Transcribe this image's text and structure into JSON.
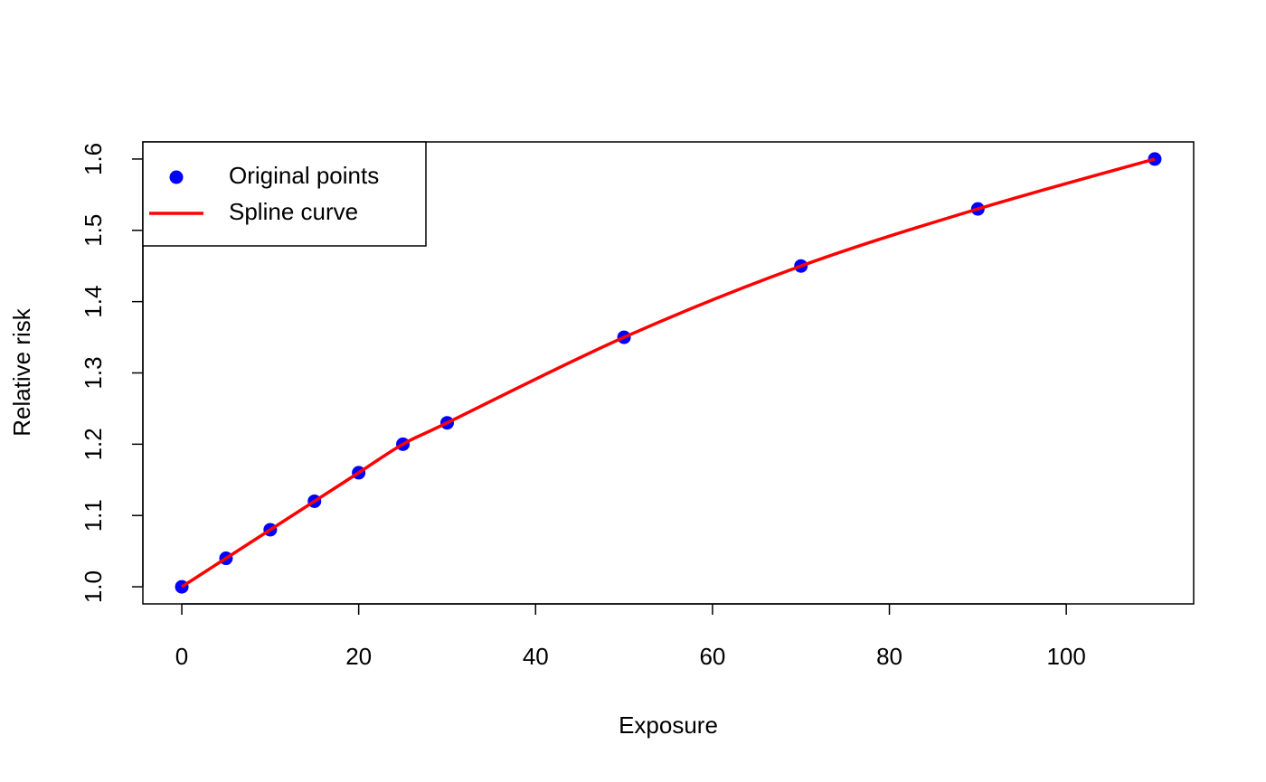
{
  "chart_data": {
    "type": "scatter",
    "x_label": "Exposure",
    "y_label": "Relative risk",
    "x": [
      0,
      5,
      10,
      15,
      20,
      25,
      30,
      50,
      70,
      90,
      110
    ],
    "series": [
      {
        "name": "Original points",
        "type": "scatter",
        "color": "#0000ff",
        "values": [
          1.0,
          1.04,
          1.08,
          1.12,
          1.16,
          1.2,
          1.23,
          1.35,
          1.45,
          1.53,
          1.6
        ]
      },
      {
        "name": "Spline curve",
        "type": "line",
        "color": "#ff0000",
        "values": [
          1.0,
          1.04,
          1.08,
          1.12,
          1.16,
          1.2,
          1.23,
          1.35,
          1.45,
          1.53,
          1.6
        ]
      }
    ],
    "xlim": [
      -4.4,
      114.4
    ],
    "ylim": [
      0.976,
      1.624
    ],
    "xticks": [
      0,
      20,
      40,
      60,
      80,
      100
    ],
    "yticks": [
      {
        "value": 1.0,
        "label": "1.0"
      },
      1.1,
      1.2,
      1.3,
      1.4,
      1.5,
      1.6
    ],
    "legend": "topleft"
  }
}
